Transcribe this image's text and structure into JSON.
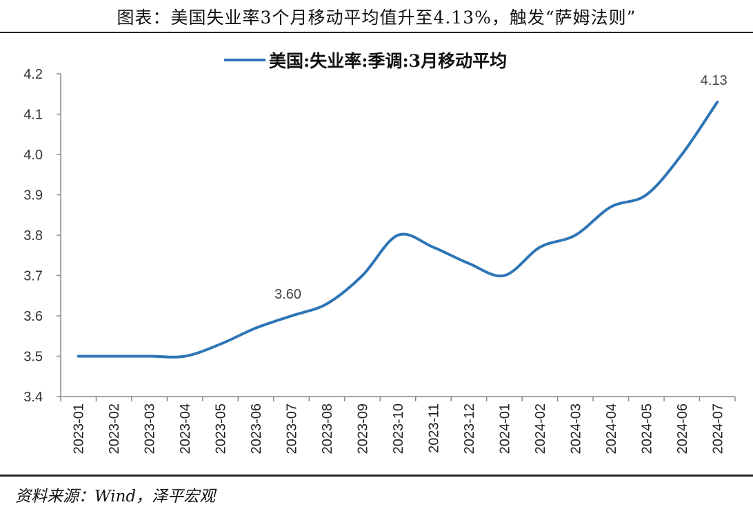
{
  "title": "图表：美国失业率3个月移动平均值升至4.13%，触发“萨姆法则”",
  "source": "资料来源：Wind，泽平宏观",
  "chart_data": {
    "type": "line",
    "categories": [
      "2023-01",
      "2023-02",
      "2023-03",
      "2023-04",
      "2023-05",
      "2023-06",
      "2023-07",
      "2023-08",
      "2023-09",
      "2023-10",
      "2023-11",
      "2023-12",
      "2024-01",
      "2024-02",
      "2024-03",
      "2024-04",
      "2024-05",
      "2024-06",
      "2024-07"
    ],
    "series": [
      {
        "name": "美国:失业率:季调:3月移动平均",
        "values": [
          3.5,
          3.5,
          3.5,
          3.5,
          3.53,
          3.57,
          3.6,
          3.63,
          3.7,
          3.8,
          3.77,
          3.73,
          3.7,
          3.77,
          3.8,
          3.87,
          3.9,
          4.0,
          4.13
        ],
        "color": "#2e75b6"
      }
    ],
    "annotations": [
      {
        "category": "2023-07",
        "label": "3.60"
      },
      {
        "category": "2024-07",
        "label": "4.13"
      }
    ],
    "yticks": [
      "3.4",
      "3.5",
      "3.6",
      "3.7",
      "3.8",
      "3.9",
      "4.0",
      "4.1",
      "4.2"
    ],
    "ylim": [
      3.4,
      4.2
    ],
    "legend": "top",
    "grid": false
  }
}
